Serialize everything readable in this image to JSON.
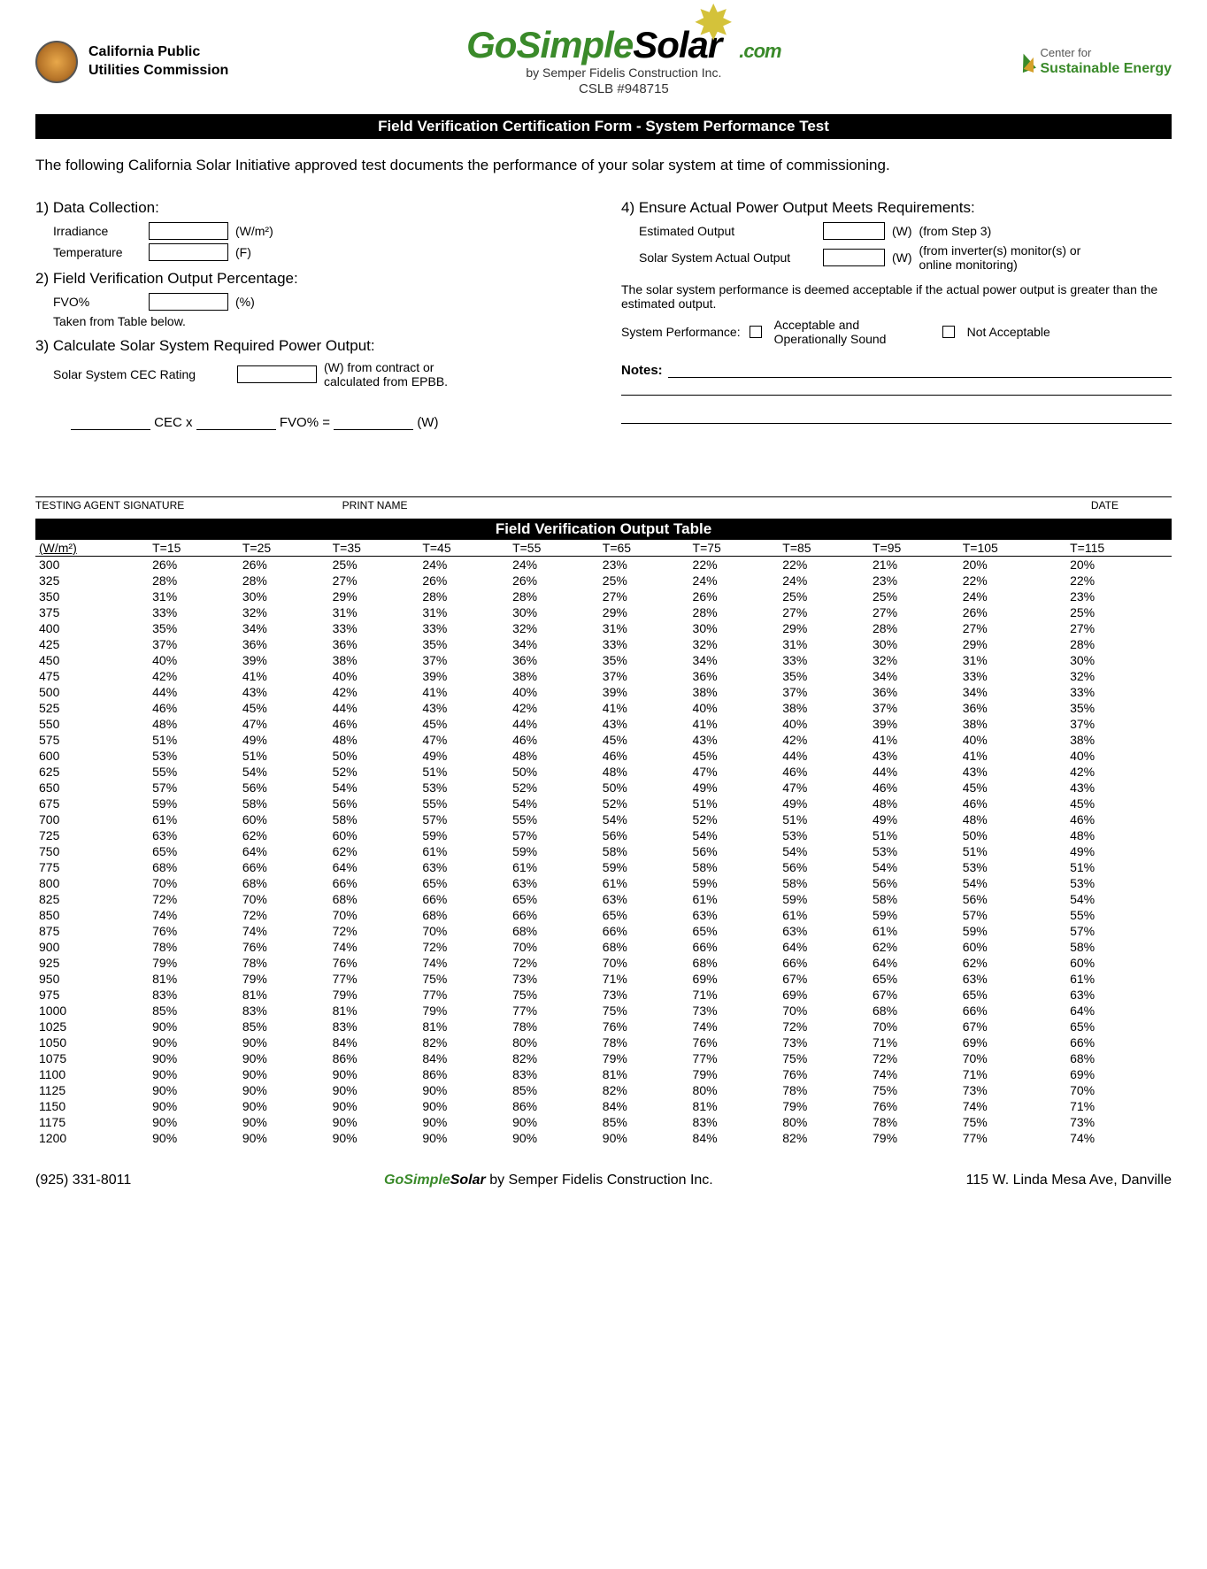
{
  "header": {
    "cpuc_line1": "California Public",
    "cpuc_line2": "Utilities Commission",
    "logo_go": "Go",
    "logo_simple": "Simple",
    "logo_solar": "Solar",
    "logo_com": ".com",
    "logo_sub": "by Semper Fidelis Construction Inc.",
    "logo_cslb": "CSLB #948715",
    "cse_top": "Center for",
    "cse_bottom": "Sustainable Energy"
  },
  "title_bar": "Field Verification Certification Form - System Performance Test",
  "intro": "The following California Solar Initiative approved test documents the performance of your solar system at time of commissioning.",
  "s1": {
    "h": "1) Data Collection:",
    "irradiance": "Irradiance",
    "irr_unit": "(W/m²)",
    "temperature": "Temperature",
    "temp_unit": "(F)"
  },
  "s2": {
    "h": "2) Field Verification Output Percentage:",
    "fvo": "FVO%",
    "fvo_unit": "(%)",
    "note": "Taken from Table below."
  },
  "s3": {
    "h": "3) Calculate Solar System Required Power Output:",
    "cec": "Solar System CEC Rating",
    "cec_note": "(W) from contract or calculated from EPBB.",
    "formula_cec": "CEC x",
    "formula_fvo": "FVO% =",
    "formula_w": "(W)"
  },
  "s4": {
    "h": "4) Ensure Actual Power Output Meets Requirements:",
    "est": "Estimated Output",
    "est_unit": "(W)",
    "est_note": "(from Step 3)",
    "actual": "Solar System Actual Output",
    "actual_unit": "(W)",
    "actual_note": "(from inverter(s) monitor(s) or online monitoring)",
    "deemed": "The solar system performance is deemed acceptable if the actual power output is greater than the estimated output.",
    "perf_label": "System Performance:",
    "perf_ok": "Acceptable and Operationally Sound",
    "perf_not": "Not Acceptable",
    "notes": "Notes:"
  },
  "sig": {
    "agent": "TESTING AGENT SIGNATURE",
    "print": "PRINT NAME",
    "date": "DATE"
  },
  "table_title": "Field Verification Output Table",
  "table": {
    "col_headers": [
      "(W/m²)",
      "T=15",
      "T=25",
      "T=35",
      "T=45",
      "T=55",
      "T=65",
      "T=75",
      "T=85",
      "T=95",
      "T=105",
      "T=115"
    ],
    "rows": [
      [
        "300",
        "26%",
        "26%",
        "25%",
        "24%",
        "24%",
        "23%",
        "22%",
        "22%",
        "21%",
        "20%",
        "20%"
      ],
      [
        "325",
        "28%",
        "28%",
        "27%",
        "26%",
        "26%",
        "25%",
        "24%",
        "24%",
        "23%",
        "22%",
        "22%"
      ],
      [
        "350",
        "31%",
        "30%",
        "29%",
        "28%",
        "28%",
        "27%",
        "26%",
        "25%",
        "25%",
        "24%",
        "23%"
      ],
      [
        "375",
        "33%",
        "32%",
        "31%",
        "31%",
        "30%",
        "29%",
        "28%",
        "27%",
        "27%",
        "26%",
        "25%"
      ],
      [
        "400",
        "35%",
        "34%",
        "33%",
        "33%",
        "32%",
        "31%",
        "30%",
        "29%",
        "28%",
        "27%",
        "27%"
      ],
      [
        "425",
        "37%",
        "36%",
        "36%",
        "35%",
        "34%",
        "33%",
        "32%",
        "31%",
        "30%",
        "29%",
        "28%"
      ],
      [
        "450",
        "40%",
        "39%",
        "38%",
        "37%",
        "36%",
        "35%",
        "34%",
        "33%",
        "32%",
        "31%",
        "30%"
      ],
      [
        "475",
        "42%",
        "41%",
        "40%",
        "39%",
        "38%",
        "37%",
        "36%",
        "35%",
        "34%",
        "33%",
        "32%"
      ],
      [
        "500",
        "44%",
        "43%",
        "42%",
        "41%",
        "40%",
        "39%",
        "38%",
        "37%",
        "36%",
        "34%",
        "33%"
      ],
      [
        "525",
        "46%",
        "45%",
        "44%",
        "43%",
        "42%",
        "41%",
        "40%",
        "38%",
        "37%",
        "36%",
        "35%"
      ],
      [
        "550",
        "48%",
        "47%",
        "46%",
        "45%",
        "44%",
        "43%",
        "41%",
        "40%",
        "39%",
        "38%",
        "37%"
      ],
      [
        "575",
        "51%",
        "49%",
        "48%",
        "47%",
        "46%",
        "45%",
        "43%",
        "42%",
        "41%",
        "40%",
        "38%"
      ],
      [
        "600",
        "53%",
        "51%",
        "50%",
        "49%",
        "48%",
        "46%",
        "45%",
        "44%",
        "43%",
        "41%",
        "40%"
      ],
      [
        "625",
        "55%",
        "54%",
        "52%",
        "51%",
        "50%",
        "48%",
        "47%",
        "46%",
        "44%",
        "43%",
        "42%"
      ],
      [
        "650",
        "57%",
        "56%",
        "54%",
        "53%",
        "52%",
        "50%",
        "49%",
        "47%",
        "46%",
        "45%",
        "43%"
      ],
      [
        "675",
        "59%",
        "58%",
        "56%",
        "55%",
        "54%",
        "52%",
        "51%",
        "49%",
        "48%",
        "46%",
        "45%"
      ],
      [
        "700",
        "61%",
        "60%",
        "58%",
        "57%",
        "55%",
        "54%",
        "52%",
        "51%",
        "49%",
        "48%",
        "46%"
      ],
      [
        "725",
        "63%",
        "62%",
        "60%",
        "59%",
        "57%",
        "56%",
        "54%",
        "53%",
        "51%",
        "50%",
        "48%"
      ],
      [
        "750",
        "65%",
        "64%",
        "62%",
        "61%",
        "59%",
        "58%",
        "56%",
        "54%",
        "53%",
        "51%",
        "49%"
      ],
      [
        "775",
        "68%",
        "66%",
        "64%",
        "63%",
        "61%",
        "59%",
        "58%",
        "56%",
        "54%",
        "53%",
        "51%"
      ],
      [
        "800",
        "70%",
        "68%",
        "66%",
        "65%",
        "63%",
        "61%",
        "59%",
        "58%",
        "56%",
        "54%",
        "53%"
      ],
      [
        "825",
        "72%",
        "70%",
        "68%",
        "66%",
        "65%",
        "63%",
        "61%",
        "59%",
        "58%",
        "56%",
        "54%"
      ],
      [
        "850",
        "74%",
        "72%",
        "70%",
        "68%",
        "66%",
        "65%",
        "63%",
        "61%",
        "59%",
        "57%",
        "55%"
      ],
      [
        "875",
        "76%",
        "74%",
        "72%",
        "70%",
        "68%",
        "66%",
        "65%",
        "63%",
        "61%",
        "59%",
        "57%"
      ],
      [
        "900",
        "78%",
        "76%",
        "74%",
        "72%",
        "70%",
        "68%",
        "66%",
        "64%",
        "62%",
        "60%",
        "58%"
      ],
      [
        "925",
        "79%",
        "78%",
        "76%",
        "74%",
        "72%",
        "70%",
        "68%",
        "66%",
        "64%",
        "62%",
        "60%"
      ],
      [
        "950",
        "81%",
        "79%",
        "77%",
        "75%",
        "73%",
        "71%",
        "69%",
        "67%",
        "65%",
        "63%",
        "61%"
      ],
      [
        "975",
        "83%",
        "81%",
        "79%",
        "77%",
        "75%",
        "73%",
        "71%",
        "69%",
        "67%",
        "65%",
        "63%"
      ],
      [
        "1000",
        "85%",
        "83%",
        "81%",
        "79%",
        "77%",
        "75%",
        "73%",
        "70%",
        "68%",
        "66%",
        "64%"
      ],
      [
        "1025",
        "90%",
        "85%",
        "83%",
        "81%",
        "78%",
        "76%",
        "74%",
        "72%",
        "70%",
        "67%",
        "65%"
      ],
      [
        "1050",
        "90%",
        "90%",
        "84%",
        "82%",
        "80%",
        "78%",
        "76%",
        "73%",
        "71%",
        "69%",
        "66%"
      ],
      [
        "1075",
        "90%",
        "90%",
        "86%",
        "84%",
        "82%",
        "79%",
        "77%",
        "75%",
        "72%",
        "70%",
        "68%"
      ],
      [
        "1100",
        "90%",
        "90%",
        "90%",
        "86%",
        "83%",
        "81%",
        "79%",
        "76%",
        "74%",
        "71%",
        "69%"
      ],
      [
        "1125",
        "90%",
        "90%",
        "90%",
        "90%",
        "85%",
        "82%",
        "80%",
        "78%",
        "75%",
        "73%",
        "70%"
      ],
      [
        "1150",
        "90%",
        "90%",
        "90%",
        "90%",
        "86%",
        "84%",
        "81%",
        "79%",
        "76%",
        "74%",
        "71%"
      ],
      [
        "1175",
        "90%",
        "90%",
        "90%",
        "90%",
        "90%",
        "85%",
        "83%",
        "80%",
        "78%",
        "75%",
        "73%"
      ],
      [
        "1200",
        "90%",
        "90%",
        "90%",
        "90%",
        "90%",
        "90%",
        "84%",
        "82%",
        "79%",
        "77%",
        "74%"
      ]
    ]
  },
  "footer": {
    "phone": "(925) 331-8011",
    "center_pre": "Go",
    "center_mid": "Simple",
    "center_solar": "Solar",
    "center_rest": " by Semper Fidelis Construction Inc.",
    "address": "115 W. Linda Mesa Ave, Danville"
  },
  "style": {
    "brand_green": "#3a8a2a",
    "brand_yellow": "#d4c23a",
    "bar_bg": "#000000",
    "bar_fg": "#ffffff"
  }
}
